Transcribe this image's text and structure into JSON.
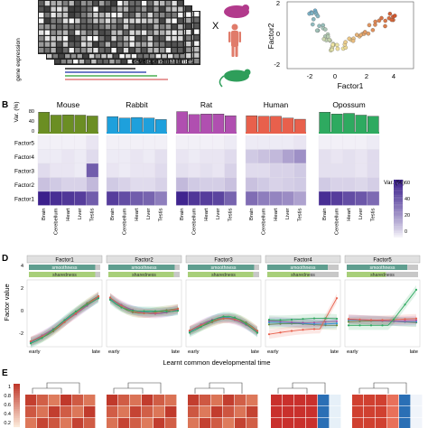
{
  "panels": {
    "A": {
      "matrix_ylabel": "gene expression",
      "times_label": "developmental times",
      "times_colors": [
        "#222222",
        "#3f51b5",
        "#4caf50",
        "#e07b7b"
      ],
      "operator": "X",
      "species_icon_colors": [
        "#b23a8c",
        "#e07b6a",
        "#2e9e5a"
      ],
      "scatter": {
        "xlabel": "Factor1",
        "ylabel": "Factor2",
        "xticks": [
          "-2",
          "0",
          "2",
          "4"
        ],
        "yticks": [
          "2",
          "0",
          "-2"
        ]
      }
    },
    "B": {
      "label": "B",
      "bar_ylabel": "Var. (%)",
      "bar_yticks": [
        "80",
        "40",
        "0"
      ],
      "colorbar_title": "Var. (%)",
      "colorbar_ticks": [
        "60",
        "40",
        "20",
        "0"
      ],
      "factors": [
        "Factor5",
        "Factor4",
        "Factor3",
        "Factor2",
        "Factor1"
      ],
      "tissues": [
        "Brain",
        "Cerebellum",
        "Heart",
        "Liver",
        "Testis"
      ],
      "species": [
        {
          "name": "Mouse",
          "color": "#6b8e23",
          "bars": [
            70,
            60,
            61,
            60,
            57
          ],
          "heat": [
            [
              2,
              2,
              2,
              2,
              4
            ],
            [
              3,
              3,
              4,
              3,
              6
            ],
            [
              6,
              4,
              4,
              3,
              40
            ],
            [
              12,
              10,
              8,
              8,
              14
            ],
            [
              60,
              55,
              52,
              50,
              40
            ]
          ]
        },
        {
          "name": "Rabbit",
          "color": "#1ea0dc",
          "bars": [
            55,
            50,
            52,
            50,
            45
          ],
          "heat": [
            [
              2,
              2,
              2,
              2,
              2
            ],
            [
              3,
              3,
              4,
              3,
              5
            ],
            [
              4,
              3,
              4,
              4,
              6
            ],
            [
              10,
              8,
              6,
              6,
              8
            ],
            [
              50,
              45,
              40,
              38,
              30
            ]
          ]
        },
        {
          "name": "Rat",
          "color": "#b04fb0",
          "bars": [
            72,
            62,
            64,
            64,
            58
          ],
          "heat": [
            [
              2,
              2,
              2,
              2,
              3
            ],
            [
              4,
              3,
              4,
              4,
              6
            ],
            [
              5,
              4,
              5,
              4,
              8
            ],
            [
              14,
              10,
              9,
              9,
              12
            ],
            [
              58,
              52,
              50,
              48,
              38
            ]
          ]
        },
        {
          "name": "Human",
          "color": "#e8604c",
          "bars": [
            58,
            56,
            56,
            50,
            46
          ],
          "heat": [
            [
              3,
              3,
              3,
              3,
              4
            ],
            [
              10,
              12,
              14,
              20,
              25
            ],
            [
              6,
              6,
              8,
              8,
              10
            ],
            [
              12,
              10,
              8,
              9,
              10
            ],
            [
              35,
              30,
              28,
              26,
              20
            ]
          ]
        },
        {
          "name": "Opossum",
          "color": "#2eaa60",
          "bars": [
            70,
            64,
            66,
            60,
            56
          ],
          "heat": [
            [
              2,
              2,
              2,
              2,
              3
            ],
            [
              5,
              4,
              5,
              4,
              6
            ],
            [
              5,
              5,
              5,
              4,
              6
            ],
            [
              10,
              8,
              8,
              7,
              9
            ],
            [
              55,
              50,
              45,
              42,
              36
            ]
          ]
        }
      ]
    },
    "D": {
      "label": "D",
      "ylabel": "Factor value",
      "xlabel": "Learnt common developmental time",
      "yticks": [
        "4",
        "2",
        "0",
        "-2"
      ],
      "xtick_early": "early",
      "xtick_late": "late",
      "bar_smooth_label": "smoothness",
      "bar_shared_label": "sharedness",
      "smooth_color": "#5f9e8f",
      "shared_color": "#a8cf7a",
      "species_colors": [
        "#6b8e23",
        "#1ea0dc",
        "#b04fb0",
        "#e8604c",
        "#2eaa60"
      ],
      "facets": [
        {
          "title": "Factor1",
          "smooth": 0.93,
          "shared": 0.93
        },
        {
          "title": "Factor2",
          "smooth": 0.93,
          "shared": 0.92
        },
        {
          "title": "Factor3",
          "smooth": 0.93,
          "shared": 0.92
        },
        {
          "title": "Factor4",
          "smooth": 0.85,
          "shared": 0.6
        },
        {
          "title": "Factor5",
          "smooth": 0.85,
          "shared": 0.55
        }
      ]
    },
    "E": {
      "label": "E",
      "colorbar_ticks": [
        "1",
        "0.8",
        "0.6",
        "0.4",
        "0.2"
      ]
    }
  }
}
